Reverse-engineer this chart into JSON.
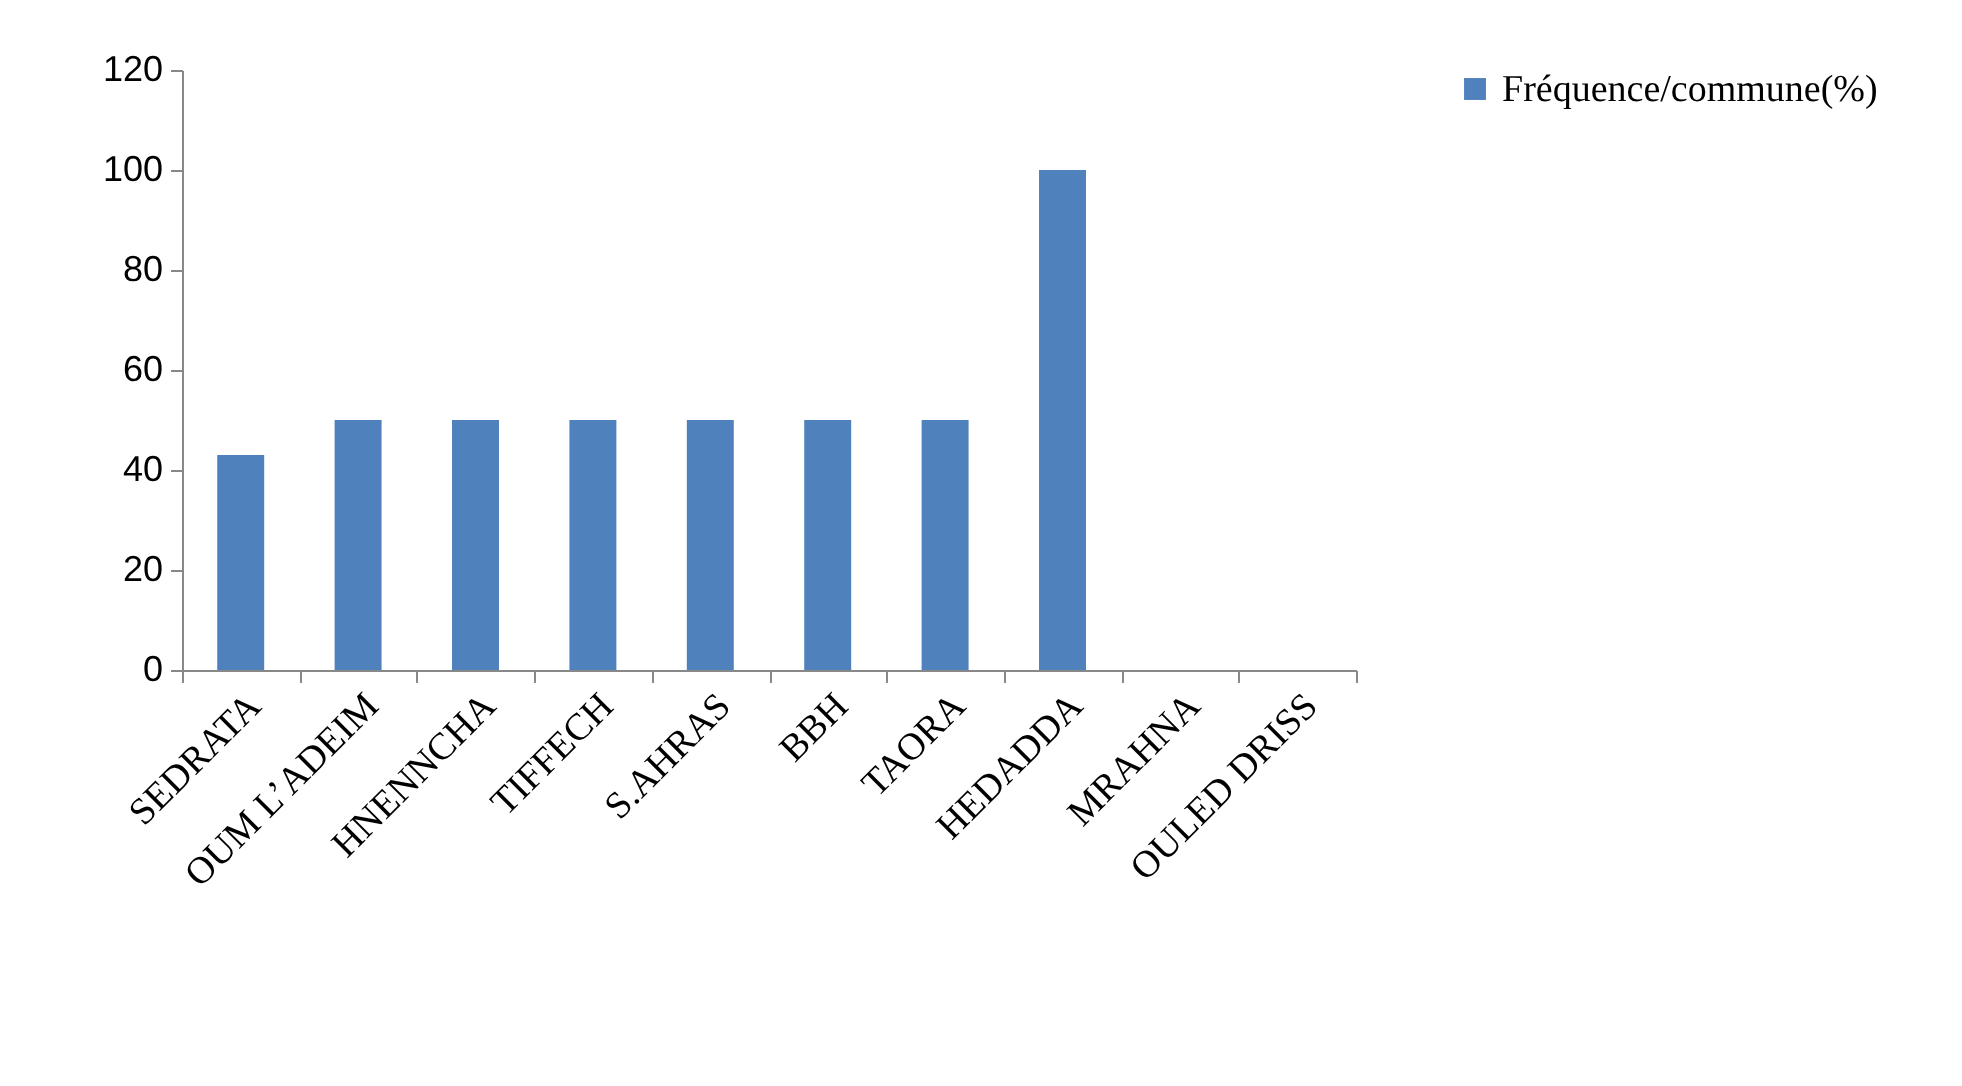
{
  "chart_data": {
    "type": "bar",
    "categories": [
      "SEDRATA",
      "OUM L’ADEIM",
      "HNENNCHA",
      "TIFFECH",
      "S.AHRAS",
      "BBH",
      "TAORA",
      "HEDADDA",
      "MRAHNA",
      "OULED DRISS"
    ],
    "series": [
      {
        "name": "Fréquence/commune(%)",
        "color": "#4f81bd",
        "values": [
          43,
          50,
          50,
          50,
          50,
          50,
          50,
          100,
          0,
          0
        ]
      }
    ],
    "ylim": [
      0,
      120
    ],
    "yticks": [
      0,
      20,
      40,
      60,
      80,
      100,
      120
    ],
    "legend": "right"
  }
}
